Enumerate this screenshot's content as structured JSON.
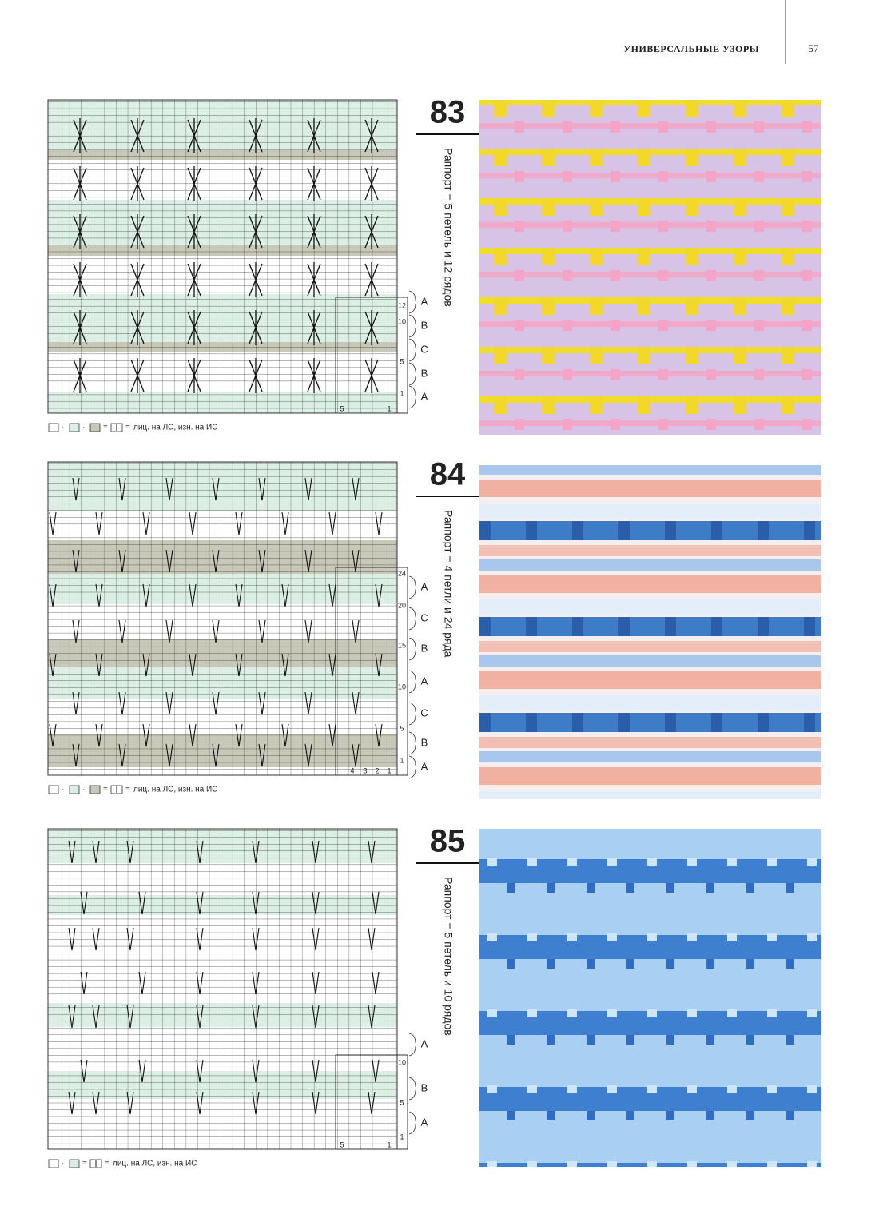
{
  "header": {
    "section": "УНИВЕРСАЛЬНЫЕ УЗОРЫ",
    "page": "57"
  },
  "patterns": [
    {
      "number": "83",
      "rapport": "Раппорт = 5 петель и 12 рядов",
      "row_numbers": [
        "12",
        "10",
        "5",
        "1"
      ],
      "column_numbers": [
        "5",
        "1"
      ],
      "color_groups": [
        "A",
        "B",
        "C",
        "B",
        "A"
      ],
      "legend": {
        "separator": "·",
        "equals": "=",
        "text": "лиц. на ЛС, изн. на ИС"
      }
    },
    {
      "number": "84",
      "rapport": "Раппорт = 4 петли и 24 ряда",
      "row_numbers": [
        "24",
        "20",
        "15",
        "10",
        "5",
        "1"
      ],
      "column_numbers": [
        "4",
        "3",
        "2",
        "1"
      ],
      "color_groups": [
        "A",
        "C",
        "B",
        "A",
        "C",
        "B",
        "A"
      ],
      "legend": {
        "separator": "·",
        "equals": "=",
        "text": "лиц. на ЛС, изн. на ИС"
      }
    },
    {
      "number": "85",
      "rapport": "Раппорт = 5 петель и 10 рядов",
      "row_numbers": [
        "10",
        "5",
        "1"
      ],
      "column_numbers": [
        "5",
        "1"
      ],
      "color_groups": [
        "A",
        "B",
        "A"
      ],
      "legend": {
        "separator": "·",
        "equals": "=",
        "text": "лиц. на ЛС, изн. на ИС"
      }
    }
  ]
}
